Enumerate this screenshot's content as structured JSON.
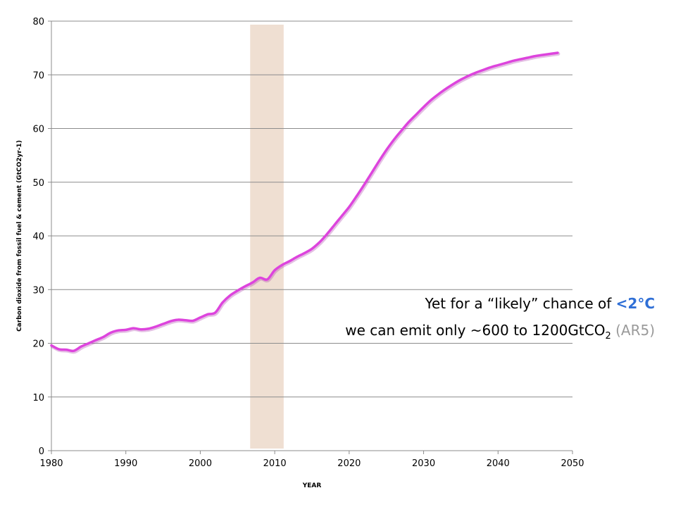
{
  "chart_data": {
    "type": "line",
    "xlabel": "YEAR",
    "ylabel": "Carbon dioxide from fossil fuel & cement (GtCO2yr-1)",
    "xlim": [
      1980,
      2050
    ],
    "ylim": [
      0,
      80
    ],
    "xticks": [
      1980,
      1990,
      2000,
      2010,
      2020,
      2030,
      2040,
      2050
    ],
    "yticks": [
      0,
      10,
      20,
      30,
      40,
      50,
      60,
      70,
      80
    ],
    "grid": "horizontal",
    "highlight_band": {
      "x_start": 2006.7,
      "x_end": 2011.2,
      "color": "#efdfd2"
    },
    "series": [
      {
        "color": "#dd44dd",
        "x": [
          1980,
          1981,
          1982,
          1983,
          1984,
          1985,
          1986,
          1987,
          1988,
          1989,
          1990,
          1991,
          1992,
          1993,
          1994,
          1995,
          1996,
          1997,
          1998,
          1999,
          2000,
          2001,
          2002,
          2003,
          2004,
          2005,
          2006,
          2007,
          2008,
          2009,
          2010,
          2011,
          2012,
          2013,
          2014,
          2015,
          2016,
          2017,
          2018,
          2019,
          2020,
          2021,
          2022,
          2023,
          2024,
          2025,
          2026,
          2027,
          2028,
          2029,
          2030,
          2031,
          2032,
          2033,
          2034,
          2035,
          2036,
          2037,
          2038,
          2039,
          2040,
          2041,
          2042,
          2043,
          2044,
          2045,
          2046,
          2047,
          2048
        ],
        "y": [
          19.6,
          18.9,
          18.8,
          18.6,
          19.4,
          20.0,
          20.6,
          21.2,
          22.0,
          22.4,
          22.5,
          22.8,
          22.6,
          22.7,
          23.1,
          23.6,
          24.1,
          24.4,
          24.3,
          24.2,
          24.8,
          25.4,
          25.7,
          27.6,
          28.9,
          29.8,
          30.6,
          31.3,
          32.2,
          31.9,
          33.6,
          34.6,
          35.3,
          36.1,
          36.8,
          37.6,
          38.8,
          40.3,
          42.0,
          43.7,
          45.4,
          47.4,
          49.5,
          51.7,
          53.9,
          56.0,
          57.9,
          59.6,
          61.2,
          62.6,
          64.0,
          65.3,
          66.4,
          67.4,
          68.3,
          69.1,
          69.8,
          70.4,
          70.9,
          71.4,
          71.8,
          72.2,
          72.6,
          72.9,
          73.2,
          73.5,
          73.7,
          73.9,
          74.1
        ]
      }
    ]
  },
  "caption": {
    "line1_prefix": "Yet for a “likely” chance of ",
    "line1_highlight": "<2°C",
    "line2_prefix": "we can emit only ~600 to 1200GtCO",
    "line2_subscript": "2",
    "line2_suffix": " (AR5)"
  },
  "colors": {
    "accent_blue": "#2f6fd6",
    "muted_gray": "#9a9a9a",
    "line": "#dd44dd",
    "band": "#efdfd2"
  }
}
